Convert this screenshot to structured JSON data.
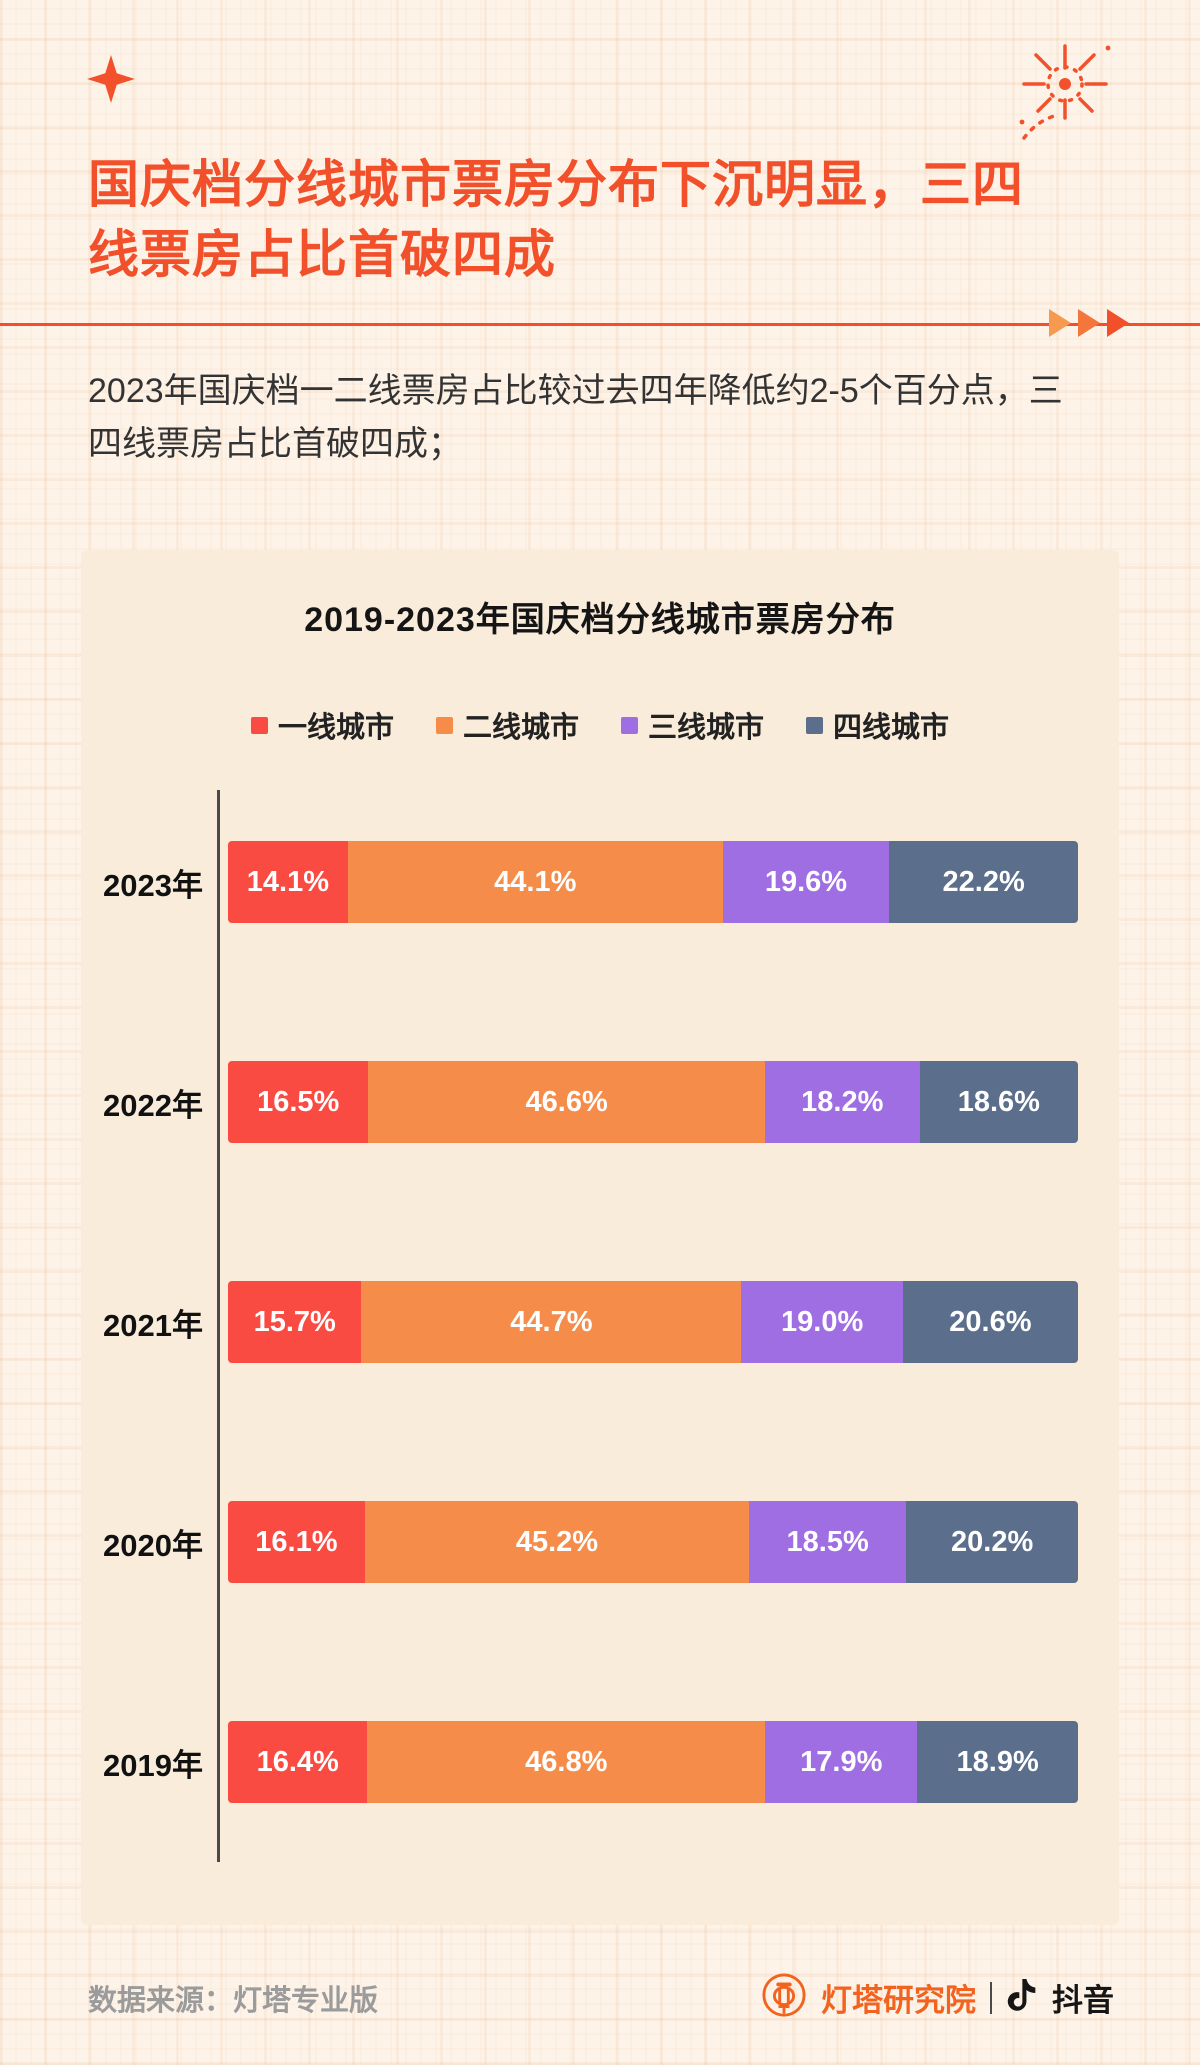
{
  "page": {
    "title": "国庆档分线城市票房分布下沉明显，三四线票房占比首破四成",
    "subtitle": "2023年国庆档一二线票房占比较过去四年降低约2-5个百分点，三四线票房占比首破四成；"
  },
  "colors": {
    "accent": "#f1502a",
    "page_background": "#fdf3e8",
    "card_background": "#f9ecda"
  },
  "chart_data": {
    "type": "bar",
    "orientation": "horizontal-stacked",
    "title": "2019-2023年国庆档分线城市票房分布",
    "categories": [
      "2023年",
      "2022年",
      "2021年",
      "2020年",
      "2019年"
    ],
    "series": [
      {
        "name": "一线城市",
        "color": "#fa4b43",
        "values": [
          14.1,
          16.5,
          15.7,
          16.1,
          16.4
        ]
      },
      {
        "name": "二线城市",
        "color": "#f68c4a",
        "values": [
          44.1,
          46.6,
          44.7,
          45.2,
          46.8
        ]
      },
      {
        "name": "三线城市",
        "color": "#9f6ee3",
        "values": [
          19.6,
          18.2,
          19.0,
          18.5,
          17.9
        ]
      },
      {
        "name": "四线城市",
        "color": "#5b6e8b",
        "values": [
          22.2,
          18.6,
          20.6,
          20.2,
          18.9
        ]
      }
    ],
    "value_suffix": "%",
    "xlim": [
      0,
      100
    ],
    "legend_position": "top",
    "grid": false
  },
  "footer": {
    "source": "数据来源：灯塔专业版",
    "brand_left": "灯塔研究院",
    "brand_right": "抖音"
  }
}
